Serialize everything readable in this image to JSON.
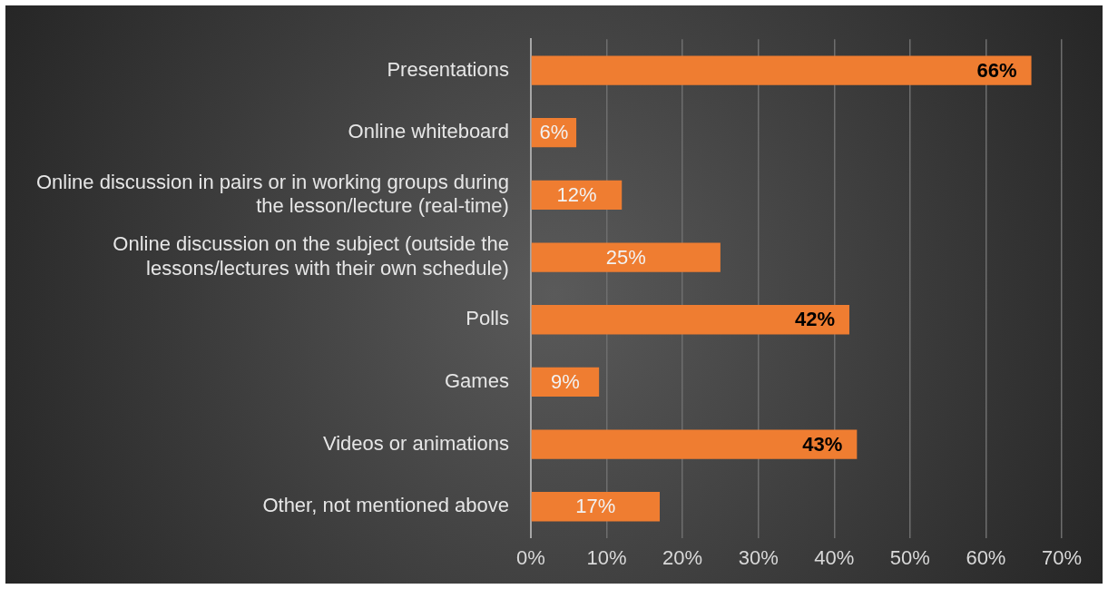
{
  "chart_data": {
    "type": "bar",
    "orientation": "horizontal",
    "categories": [
      "Presentations",
      "Online whiteboard",
      "Online discussion in pairs or in working groups during the lesson/lecture (real-time)",
      "Online discussion on the subject (outside the lessons/lectures with their own schedule)",
      "Polls",
      "Games",
      "Videos or animations",
      "Other, not mentioned above"
    ],
    "values": [
      66,
      6,
      12,
      25,
      42,
      9,
      43,
      17
    ],
    "value_labels": [
      "66%",
      "6%",
      "12%",
      "25%",
      "42%",
      "9%",
      "43%",
      "17%"
    ],
    "color": "#ef7d31",
    "xlim": [
      0,
      70
    ],
    "xticks": [
      {
        "value": 0,
        "label": "0%"
      },
      {
        "value": 10,
        "label": "10%"
      },
      {
        "value": 20,
        "label": "20%"
      },
      {
        "value": 30,
        "label": "30%"
      },
      {
        "value": 40,
        "label": "40%"
      },
      {
        "value": 50,
        "label": "50%"
      },
      {
        "value": 60,
        "label": "60%"
      },
      {
        "value": 70,
        "label": "70%"
      }
    ],
    "grid": "x",
    "legend": false
  }
}
